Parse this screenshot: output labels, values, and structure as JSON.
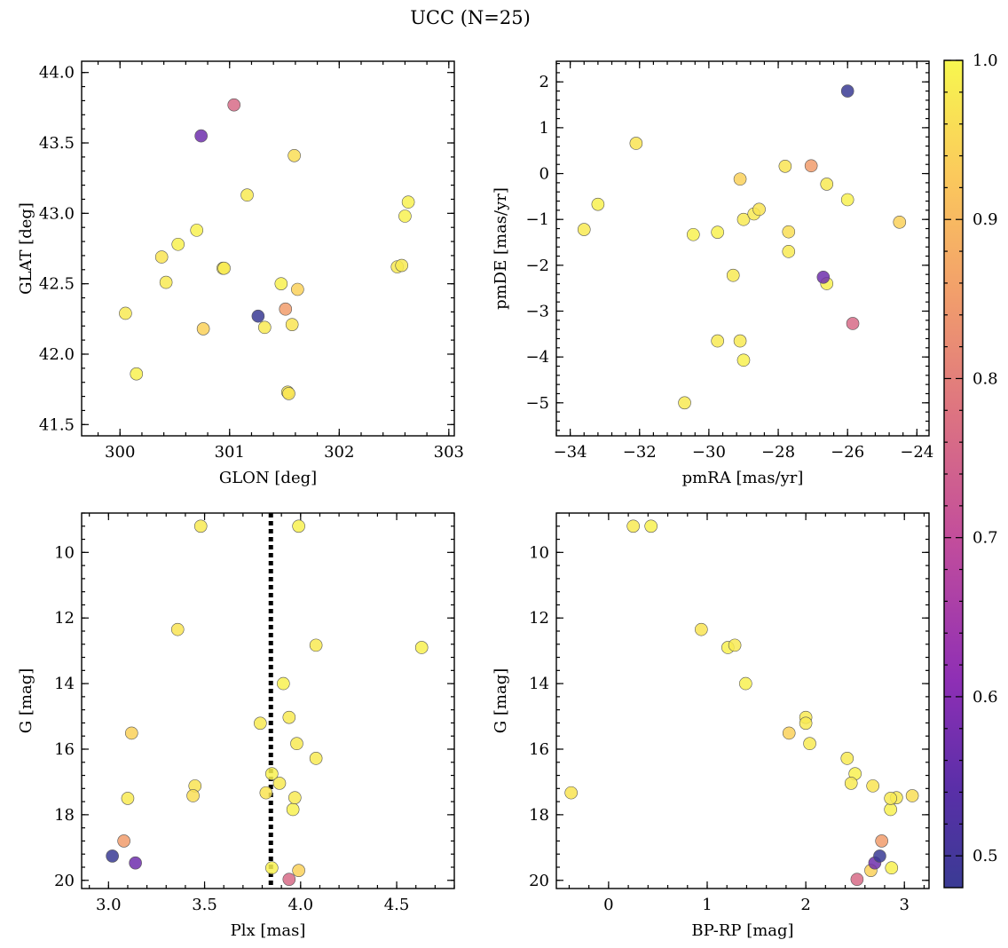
{
  "figure": {
    "title": "UCC (N=25)"
  },
  "colormap": {
    "name": "plasma",
    "range": [
      0.48,
      1.0
    ],
    "ticks": [
      0.5,
      0.6,
      0.7,
      0.8,
      0.9,
      1.0
    ],
    "tick_labels": [
      "0.5",
      "0.6",
      "0.7",
      "0.8",
      "0.9",
      "1.0"
    ]
  },
  "stars": [
    {
      "glon": 300.05,
      "glat": 42.29,
      "pmra": -33.6,
      "pmde": -1.22,
      "plx": 3.48,
      "g": 9.2,
      "bprp": 0.25,
      "prob": 0.98
    },
    {
      "glon": 300.15,
      "glat": 41.86,
      "pmra": -33.2,
      "pmde": -0.67,
      "plx": 3.99,
      "g": 9.2,
      "bprp": 0.43,
      "prob": 0.99
    },
    {
      "glon": 300.38,
      "glat": 42.69,
      "pmra": -32.1,
      "pmde": 0.66,
      "plx": 3.36,
      "g": 12.35,
      "bprp": 0.94,
      "prob": 0.97
    },
    {
      "glon": 300.42,
      "glat": 42.51,
      "pmra": -30.7,
      "pmde": -5.0,
      "plx": 4.08,
      "g": 12.83,
      "bprp": 1.28,
      "prob": 0.98
    },
    {
      "glon": 300.53,
      "glat": 42.78,
      "pmra": -30.45,
      "pmde": -1.33,
      "plx": 4.63,
      "g": 12.9,
      "bprp": 1.21,
      "prob": 0.99
    },
    {
      "glon": 300.7,
      "glat": 42.88,
      "pmra": -29.75,
      "pmde": -1.28,
      "plx": 3.91,
      "g": 14.0,
      "bprp": 1.39,
      "prob": 0.99
    },
    {
      "glon": 300.94,
      "glat": 42.61,
      "pmra": -29.75,
      "pmde": -3.65,
      "plx": 3.94,
      "g": 15.03,
      "bprp": 2.0,
      "prob": 0.98
    },
    {
      "glon": 300.95,
      "glat": 42.61,
      "pmra": -29.3,
      "pmde": -2.22,
      "plx": 3.79,
      "g": 15.21,
      "bprp": 2.0,
      "prob": 0.98
    },
    {
      "glon": 300.76,
      "glat": 42.18,
      "pmra": -29.1,
      "pmde": -0.12,
      "plx": 3.12,
      "g": 15.51,
      "bprp": 1.83,
      "prob": 0.94
    },
    {
      "glon": 301.16,
      "glat": 43.13,
      "pmra": -29.1,
      "pmde": -3.65,
      "plx": 3.98,
      "g": 15.83,
      "bprp": 2.04,
      "prob": 0.98
    },
    {
      "glon": 301.32,
      "glat": 42.19,
      "pmra": -29.0,
      "pmde": -1.0,
      "plx": 4.08,
      "g": 16.28,
      "bprp": 2.42,
      "prob": 0.98
    },
    {
      "glon": 301.47,
      "glat": 42.5,
      "pmra": -29.0,
      "pmde": -4.07,
      "plx": 3.85,
      "g": 16.75,
      "bprp": 2.5,
      "prob": 0.99
    },
    {
      "glon": 301.53,
      "glat": 41.73,
      "pmra": -28.7,
      "pmde": -0.88,
      "plx": 3.89,
      "g": 17.04,
      "bprp": 2.46,
      "prob": 0.98
    },
    {
      "glon": 301.54,
      "glat": 41.72,
      "pmra": -28.55,
      "pmde": -0.78,
      "plx": 3.45,
      "g": 17.12,
      "bprp": 2.68,
      "prob": 0.97
    },
    {
      "glon": 301.57,
      "glat": 42.21,
      "pmra": -27.8,
      "pmde": 0.16,
      "plx": 3.82,
      "g": 17.33,
      "bprp": -0.38,
      "prob": 0.97
    },
    {
      "glon": 301.59,
      "glat": 43.41,
      "pmra": -27.7,
      "pmde": -1.27,
      "plx": 3.44,
      "g": 17.42,
      "bprp": 3.08,
      "prob": 0.96
    },
    {
      "glon": 302.53,
      "glat": 42.62,
      "pmra": -27.7,
      "pmde": -1.7,
      "plx": 3.97,
      "g": 17.48,
      "bprp": 2.92,
      "prob": 0.98
    },
    {
      "glon": 302.57,
      "glat": 42.63,
      "pmra": -26.6,
      "pmde": -0.23,
      "plx": 3.1,
      "g": 17.5,
      "bprp": 2.86,
      "prob": 0.98
    },
    {
      "glon": 302.6,
      "glat": 42.98,
      "pmra": -26.6,
      "pmde": -2.4,
      "plx": 3.96,
      "g": 17.84,
      "bprp": 2.86,
      "prob": 0.99
    },
    {
      "glon": 302.63,
      "glat": 43.08,
      "pmra": -26.0,
      "pmde": -0.57,
      "plx": 3.85,
      "g": 19.62,
      "bprp": 2.87,
      "prob": 0.99
    },
    {
      "glon": 301.62,
      "glat": 42.46,
      "pmra": -24.5,
      "pmde": -1.06,
      "plx": 3.99,
      "g": 19.7,
      "bprp": 2.66,
      "prob": 0.94
    },
    {
      "glon": 301.51,
      "glat": 42.32,
      "pmra": -27.05,
      "pmde": 0.17,
      "plx": 3.08,
      "g": 18.8,
      "bprp": 2.77,
      "prob": 0.85
    },
    {
      "glon": 301.04,
      "glat": 43.77,
      "pmra": -25.85,
      "pmde": -3.27,
      "plx": 3.94,
      "g": 19.97,
      "bprp": 2.52,
      "prob": 0.76
    },
    {
      "glon": 300.74,
      "glat": 43.55,
      "pmra": -26.7,
      "pmde": -2.26,
      "plx": 3.14,
      "g": 19.47,
      "bprp": 2.7,
      "prob": 0.57
    },
    {
      "glon": 301.26,
      "glat": 42.27,
      "pmra": -26.0,
      "pmde": 1.8,
      "plx": 3.02,
      "g": 19.26,
      "bprp": 2.75,
      "prob": 0.48
    }
  ],
  "chart_data": [
    {
      "type": "scatter",
      "xlabel": "GLON [deg]",
      "ylabel": "GLAT [deg]",
      "x_field": "glon",
      "y_field": "glat",
      "xlim": [
        299.65,
        303.05
      ],
      "ylim": [
        41.42,
        44.08
      ],
      "xticks": [
        300,
        301,
        302,
        303
      ],
      "xtick_labels": [
        "300",
        "301",
        "302",
        "303"
      ],
      "yticks": [
        41.5,
        42.0,
        42.5,
        43.0,
        43.5,
        44.0
      ],
      "ytick_labels": [
        "41.5",
        "42.0",
        "42.5",
        "43.0",
        "43.5",
        "44.0"
      ],
      "y_inverted": false
    },
    {
      "type": "scatter",
      "xlabel": "pmRA [mas/yr]",
      "ylabel": "pmDE [mas/yr]",
      "x_field": "pmra",
      "y_field": "pmde",
      "xlim": [
        -34.4,
        -23.65
      ],
      "ylim": [
        -5.72,
        2.45
      ],
      "xticks": [
        -34,
        -32,
        -30,
        -28,
        -26,
        -24
      ],
      "xtick_labels": [
        "−34",
        "−32",
        "−30",
        "−28",
        "−26",
        "−24"
      ],
      "yticks": [
        -5,
        -4,
        -3,
        -2,
        -1,
        0,
        1,
        2
      ],
      "ytick_labels": [
        "−5",
        "−4",
        "−3",
        "−2",
        "−1",
        "0",
        "1",
        "2"
      ],
      "y_inverted": false
    },
    {
      "type": "scatter",
      "xlabel": "Plx [mas]",
      "ylabel": "G [mag]",
      "x_field": "plx",
      "y_field": "g",
      "xlim": [
        2.86,
        4.8
      ],
      "ylim": [
        8.8,
        20.25
      ],
      "xticks": [
        3.0,
        3.5,
        4.0,
        4.5
      ],
      "xtick_labels": [
        "3.0",
        "3.5",
        "4.0",
        "4.5"
      ],
      "yticks": [
        10,
        12,
        14,
        16,
        18,
        20
      ],
      "ytick_labels": [
        "10",
        "12",
        "14",
        "16",
        "18",
        "20"
      ],
      "y_inverted": true,
      "vline": 3.845
    },
    {
      "type": "scatter",
      "xlabel": "BP-RP [mag]",
      "ylabel": "G [mag]",
      "x_field": "bprp",
      "y_field": "g",
      "xlim": [
        -0.53,
        3.25
      ],
      "ylim": [
        8.8,
        20.25
      ],
      "xticks": [
        0,
        1,
        2,
        3
      ],
      "xtick_labels": [
        "0",
        "1",
        "2",
        "3"
      ],
      "yticks": [
        10,
        12,
        14,
        16,
        18,
        20
      ],
      "ytick_labels": [
        "10",
        "12",
        "14",
        "16",
        "18",
        "20"
      ],
      "y_inverted": true
    }
  ]
}
